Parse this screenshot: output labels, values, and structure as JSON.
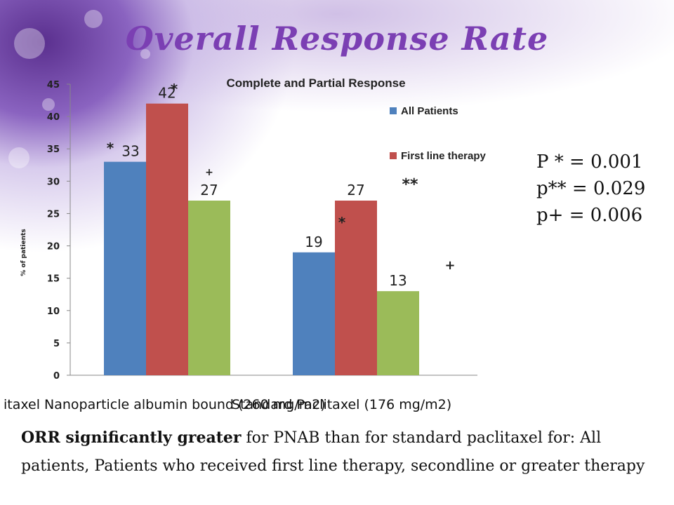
{
  "slide": {
    "title": "Overall Response Rate",
    "p_values": [
      "P  * = 0.001",
      "p** = 0.029",
      "p+  = 0.006"
    ],
    "conclusion_bold": "ORR significantly greater",
    "conclusion_rest": " for PNAB than for standard paclitaxel for: All patients, Patients who received first line therapy, secondline or greater therapy"
  },
  "chart_data": {
    "type": "bar",
    "title": "Complete and Partial Response",
    "ylabel": "% of patients",
    "xlabel": "",
    "ylim": [
      0,
      45
    ],
    "yticks": [
      0,
      5,
      10,
      15,
      20,
      25,
      30,
      35,
      40,
      45
    ],
    "categories": [
      "itaxel Nanoparticle albumin bound (260 mg/m2)",
      "Standard Paclitaxel (176 mg/m2)"
    ],
    "series": [
      {
        "name": "All Patients",
        "values": [
          33,
          19
        ],
        "color": "#4f81bd"
      },
      {
        "name": "First line therapy",
        "values": [
          42,
          27
        ],
        "color": "#c0504d"
      },
      {
        "values": [
          27,
          13
        ],
        "color": "#9bbb59"
      }
    ],
    "data_labels": [
      [
        "33",
        "19"
      ],
      [
        "42",
        "27"
      ],
      [
        "27",
        "13"
      ]
    ],
    "annotations": {
      "star": "*",
      "double_star": "**",
      "plus": "+"
    },
    "grid": false,
    "legend": "right"
  }
}
